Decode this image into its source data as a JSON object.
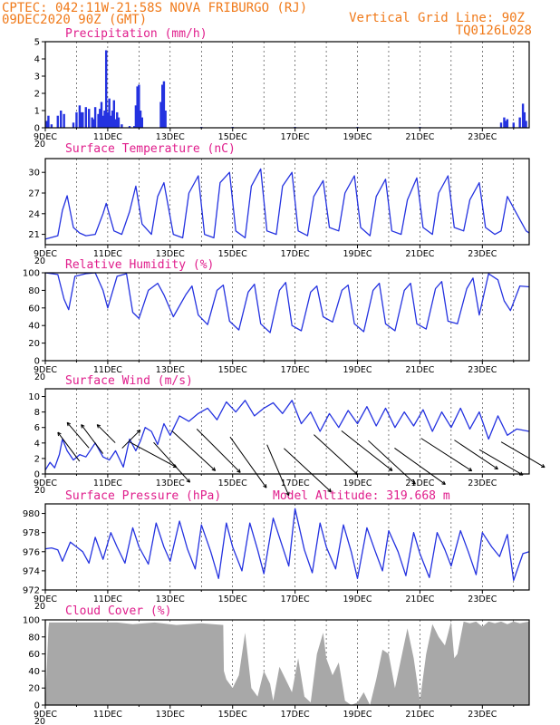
{
  "header": {
    "left_line1": "CPTEC:   042:11W-21:58S   NOVA FRIBURGO (RJ)",
    "left_line2": "09DEC2020 90Z (GMT)",
    "right_line1": "Vertical Grid Line: 90Z",
    "right_line2": "TQ0126L028"
  },
  "colors": {
    "header": "#f07a1a",
    "panel_title": "#e01e8c",
    "series": "#2432e0",
    "cloud": "#a8a8a8",
    "axis": "#000000"
  },
  "x_ticks": [
    "9DEC",
    "11DEC",
    "13DEC",
    "15DEC",
    "17DEC",
    "19DEC",
    "21DEC",
    "23DEC"
  ],
  "x_start_label": "20",
  "chart_data": [
    {
      "type": "bar",
      "title": "Precipitation (mm/h)",
      "ylim": [
        0,
        5
      ],
      "yticks": [
        "0",
        "1",
        "2",
        "3",
        "4",
        "5"
      ],
      "x_days": [
        0,
        15.5
      ],
      "bars": [
        [
          0.05,
          0.4
        ],
        [
          0.1,
          0.7
        ],
        [
          0.2,
          0.2
        ],
        [
          0.4,
          0.7
        ],
        [
          0.5,
          1.0
        ],
        [
          0.6,
          0.8
        ],
        [
          0.9,
          0.3
        ],
        [
          1.0,
          0.9
        ],
        [
          1.1,
          1.3
        ],
        [
          1.15,
          0.9
        ],
        [
          1.2,
          0.9
        ],
        [
          1.3,
          1.2
        ],
        [
          1.4,
          1.1
        ],
        [
          1.5,
          0.6
        ],
        [
          1.55,
          0.5
        ],
        [
          1.6,
          1.2
        ],
        [
          1.7,
          0.8
        ],
        [
          1.75,
          1.1
        ],
        [
          1.8,
          1.5
        ],
        [
          1.85,
          0.7
        ],
        [
          1.9,
          1.0
        ],
        [
          1.95,
          4.5
        ],
        [
          2.0,
          0.9
        ],
        [
          2.05,
          1.7
        ],
        [
          2.1,
          0.7
        ],
        [
          2.15,
          1.0
        ],
        [
          2.2,
          1.6
        ],
        [
          2.25,
          0.5
        ],
        [
          2.3,
          0.9
        ],
        [
          2.35,
          0.6
        ],
        [
          2.45,
          0.2
        ],
        [
          2.7,
          0.1
        ],
        [
          2.85,
          0.1
        ],
        [
          2.9,
          1.3
        ],
        [
          2.95,
          2.4
        ],
        [
          3.0,
          2.5
        ],
        [
          3.05,
          1.0
        ],
        [
          3.1,
          0.6
        ],
        [
          3.7,
          1.5
        ],
        [
          3.75,
          2.5
        ],
        [
          3.8,
          2.7
        ],
        [
          3.85,
          1.0
        ],
        [
          5.0,
          0.05
        ],
        [
          6.0,
          0.05
        ],
        [
          8.0,
          0.05
        ],
        [
          10.0,
          0.05
        ],
        [
          12.0,
          0.05
        ],
        [
          14.6,
          0.3
        ],
        [
          14.7,
          0.6
        ],
        [
          14.75,
          0.4
        ],
        [
          14.8,
          0.5
        ],
        [
          15.0,
          0.3
        ],
        [
          15.2,
          0.6
        ],
        [
          15.3,
          1.4
        ],
        [
          15.35,
          0.9
        ],
        [
          15.4,
          0.4
        ]
      ]
    },
    {
      "type": "line",
      "title": "Surface Temperature (nC)",
      "ylim": [
        19.5,
        32
      ],
      "yticks": [
        "21",
        "24",
        "27",
        "30"
      ],
      "x": [
        0,
        0.4,
        0.55,
        0.7,
        0.9,
        1.1,
        1.3,
        1.6,
        1.85,
        1.95,
        2.2,
        2.45,
        2.7,
        2.9,
        3.1,
        3.4,
        3.6,
        3.8,
        4.1,
        4.4,
        4.6,
        4.9,
        5.1,
        5.4,
        5.6,
        5.9,
        6.1,
        6.4,
        6.6,
        6.9,
        7.1,
        7.4,
        7.6,
        7.9,
        8.1,
        8.4,
        8.6,
        8.9,
        9.1,
        9.4,
        9.6,
        9.9,
        10.1,
        10.4,
        10.6,
        10.9,
        11.1,
        11.4,
        11.6,
        11.9,
        12.1,
        12.4,
        12.6,
        12.9,
        13.1,
        13.4,
        13.6,
        13.9,
        14.1,
        14.4,
        14.6,
        14.8,
        15.1,
        15.4,
        15.5
      ],
      "y": [
        20.3,
        20.8,
        24.5,
        26.6,
        22.0,
        21.2,
        20.8,
        21.0,
        24.0,
        25.5,
        21.5,
        21.0,
        24.3,
        28.0,
        22.5,
        21.0,
        26.5,
        28.5,
        21.0,
        20.5,
        27.0,
        29.5,
        21.0,
        20.5,
        28.5,
        30.0,
        21.5,
        20.5,
        28.0,
        30.5,
        21.5,
        21.0,
        28.0,
        30.0,
        21.5,
        20.8,
        26.5,
        28.8,
        22.0,
        21.5,
        27.0,
        29.5,
        22.0,
        20.8,
        26.5,
        29.0,
        21.5,
        21.0,
        26.0,
        29.2,
        22.0,
        21.0,
        27.0,
        29.5,
        22.0,
        21.5,
        26.0,
        28.5,
        22.0,
        21.0,
        21.5,
        26.5,
        24.0,
        21.5,
        21.2
      ]
    },
    {
      "type": "line",
      "title": "Relative Humidity (%)",
      "ylim": [
        0,
        100
      ],
      "yticks": [
        "0",
        "20",
        "40",
        "60",
        "80",
        "100"
      ],
      "x": [
        0,
        0.4,
        0.6,
        0.75,
        0.95,
        1.3,
        1.6,
        1.85,
        2.0,
        2.3,
        2.6,
        2.8,
        3.0,
        3.3,
        3.6,
        3.8,
        4.1,
        4.5,
        4.7,
        4.9,
        5.2,
        5.5,
        5.7,
        5.9,
        6.2,
        6.5,
        6.7,
        6.9,
        7.2,
        7.5,
        7.7,
        7.9,
        8.2,
        8.5,
        8.7,
        8.9,
        9.2,
        9.5,
        9.7,
        9.9,
        10.2,
        10.5,
        10.7,
        10.9,
        11.2,
        11.5,
        11.7,
        11.9,
        12.2,
        12.5,
        12.7,
        12.9,
        13.2,
        13.5,
        13.7,
        13.9,
        14.2,
        14.5,
        14.7,
        14.9,
        15.2,
        15.5
      ],
      "y": [
        100,
        98,
        70,
        58,
        96,
        99,
        100,
        80,
        60,
        96,
        99,
        55,
        48,
        80,
        88,
        75,
        50,
        75,
        85,
        52,
        41,
        80,
        86,
        45,
        35,
        78,
        87,
        42,
        32,
        80,
        89,
        40,
        34,
        78,
        85,
        50,
        44,
        80,
        86,
        42,
        33,
        80,
        88,
        42,
        34,
        80,
        88,
        42,
        36,
        82,
        90,
        45,
        42,
        82,
        94,
        52,
        99,
        92,
        68,
        57,
        85,
        84
      ]
    },
    {
      "type": "line",
      "title": "Surface Wind (m/s)",
      "ylim": [
        0,
        11
      ],
      "yticks": [
        "0",
        "2",
        "4",
        "6",
        "8",
        "10"
      ],
      "x": [
        0,
        0.15,
        0.3,
        0.45,
        0.55,
        0.7,
        0.9,
        1.1,
        1.3,
        1.6,
        1.85,
        2.05,
        2.25,
        2.5,
        2.7,
        2.9,
        3.05,
        3.2,
        3.4,
        3.6,
        3.8,
        4.0,
        4.3,
        4.6,
        4.9,
        5.2,
        5.5,
        5.8,
        6.1,
        6.4,
        6.7,
        7.0,
        7.3,
        7.6,
        7.9,
        8.2,
        8.5,
        8.8,
        9.1,
        9.4,
        9.7,
        10.0,
        10.3,
        10.6,
        10.9,
        11.2,
        11.5,
        11.8,
        12.1,
        12.4,
        12.7,
        13.0,
        13.3,
        13.6,
        13.9,
        14.2,
        14.5,
        14.8,
        15.1,
        15.5
      ],
      "y": [
        0.5,
        1.5,
        0.8,
        2.5,
        4.5,
        3.0,
        1.8,
        2.5,
        2.2,
        4.0,
        2.2,
        1.8,
        3.0,
        0.9,
        4.5,
        3.0,
        4.3,
        6.0,
        5.5,
        3.8,
        6.5,
        5.0,
        7.5,
        6.8,
        7.8,
        8.5,
        7.0,
        9.3,
        8.0,
        9.5,
        7.5,
        8.5,
        9.2,
        7.8,
        9.5,
        6.5,
        8.0,
        5.5,
        7.8,
        6.0,
        8.2,
        6.5,
        8.7,
        6.2,
        8.5,
        6.0,
        8.0,
        6.2,
        8.3,
        5.5,
        8.0,
        6.0,
        8.5,
        5.8,
        8.0,
        4.5,
        7.5,
        5.0,
        5.8,
        5.5
      ]
    },
    {
      "type": "line",
      "title": "Surface Pressure (hPa)",
      "annotation": "Model Altitude: 319.668 m",
      "ylim": [
        972,
        981
      ],
      "yticks": [
        "972",
        "974",
        "976",
        "978",
        "980"
      ],
      "x": [
        0,
        0.2,
        0.4,
        0.55,
        0.8,
        1.0,
        1.2,
        1.4,
        1.6,
        1.85,
        2.1,
        2.3,
        2.55,
        2.8,
        3.0,
        3.3,
        3.55,
        3.8,
        4.0,
        4.3,
        4.55,
        4.8,
        5.0,
        5.3,
        5.55,
        5.8,
        6.0,
        6.3,
        6.55,
        6.8,
        7.0,
        7.3,
        7.55,
        7.8,
        8.0,
        8.3,
        8.55,
        8.8,
        9.0,
        9.3,
        9.55,
        9.8,
        10.0,
        10.3,
        10.55,
        10.8,
        11.0,
        11.3,
        11.55,
        11.8,
        12.0,
        12.3,
        12.55,
        12.8,
        13.0,
        13.3,
        13.55,
        13.8,
        14.0,
        14.3,
        14.55,
        14.8,
        15.0,
        15.3,
        15.5
      ],
      "y": [
        976.3,
        976.4,
        976.2,
        975.0,
        977.0,
        976.5,
        976.0,
        974.8,
        977.5,
        975.2,
        978.0,
        976.5,
        974.8,
        978.5,
        976.5,
        974.7,
        979.0,
        976.5,
        975.0,
        979.2,
        976.3,
        974.2,
        978.8,
        976.0,
        973.2,
        979.0,
        976.5,
        974.0,
        979.0,
        976.2,
        973.7,
        979.5,
        977.0,
        974.5,
        980.5,
        976.2,
        973.8,
        979.0,
        976.5,
        974.2,
        978.8,
        976.0,
        973.2,
        978.5,
        976.2,
        974.0,
        978.2,
        976.0,
        973.5,
        978.0,
        975.8,
        973.3,
        978.0,
        976.2,
        974.5,
        978.2,
        976.0,
        973.6,
        978.0,
        976.5,
        975.5,
        977.8,
        973.0,
        975.8,
        976.0
      ]
    },
    {
      "type": "area",
      "title": "Cloud Cover (%)",
      "ylim": [
        0,
        100
      ],
      "yticks": [
        "0",
        "20",
        "40",
        "60",
        "80",
        "100"
      ],
      "x": [
        0,
        0.1,
        0.12,
        2.3,
        2.8,
        3.5,
        4.2,
        5.0,
        5.7,
        5.72,
        5.8,
        6.0,
        6.2,
        6.4,
        6.6,
        6.8,
        7.0,
        7.2,
        7.3,
        7.5,
        7.7,
        7.9,
        8.1,
        8.3,
        8.5,
        8.7,
        8.9,
        9.0,
        9.2,
        9.4,
        9.6,
        9.8,
        10.0,
        10.2,
        10.4,
        10.6,
        10.8,
        11.0,
        11.2,
        11.4,
        11.6,
        11.8,
        12.0,
        12.2,
        12.4,
        12.6,
        12.8,
        13.0,
        13.1,
        13.2,
        13.4,
        13.6,
        13.8,
        14.0,
        14.2,
        14.4,
        14.6,
        14.8,
        15.0,
        15.2,
        15.5
      ],
      "y": [
        0,
        90,
        97,
        97,
        95,
        97,
        94,
        96,
        94,
        40,
        30,
        20,
        35,
        85,
        20,
        10,
        40,
        25,
        5,
        45,
        30,
        15,
        55,
        10,
        3,
        60,
        85,
        55,
        35,
        50,
        5,
        0,
        3,
        15,
        0,
        30,
        65,
        60,
        20,
        55,
        90,
        55,
        5,
        60,
        95,
        80,
        70,
        98,
        55,
        60,
        98,
        96,
        98,
        92,
        98,
        96,
        98,
        95,
        98,
        96,
        98
      ]
    }
  ],
  "wind_vectors": {
    "note_label": "",
    "x": [
      0.75,
      1.05,
      1.5,
      1.95,
      2.75,
      3.45,
      4.05,
      4.75,
      5.55,
      6.5,
      7.45,
      8.4,
      9.3,
      10.3,
      11.1,
      12.0,
      12.85,
      13.8,
      14.6,
      15.3
    ],
    "y": [
      3.5,
      5.0,
      4.5,
      5.2,
      4.5,
      2.5,
      1.5,
      3.0,
      3.0,
      1.5,
      0.5,
      0.5,
      2.5,
      3.0,
      1.5,
      1.0,
      2.5,
      2.5,
      1.5,
      2.5
    ],
    "dx": [
      -6,
      -6,
      -6,
      -5,
      5,
      13,
      10,
      12,
      12,
      10,
      6,
      13,
      12,
      14,
      13,
      14,
      14,
      12,
      12,
      12
    ],
    "dy": [
      -8,
      -7,
      -8,
      -5,
      -5,
      7,
      11,
      11,
      12,
      14,
      14,
      12,
      11,
      11,
      12,
      10,
      9,
      8,
      7,
      7
    ]
  }
}
